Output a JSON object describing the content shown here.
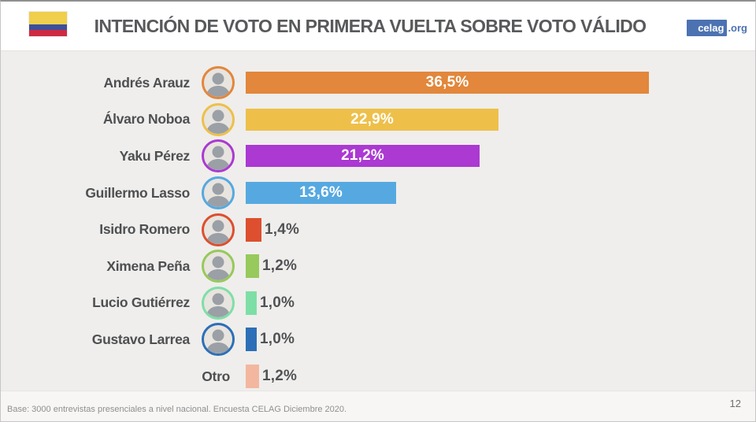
{
  "header": {
    "title": "INTENCIÓN DE VOTO EN PRIMERA VUELTA SOBRE VOTO VÁLIDO",
    "flag": {
      "name": "ecuador-flag",
      "colors": {
        "yellow": "#efcf4b",
        "blue": "#3c4f9c",
        "red": "#ce2b43"
      }
    },
    "logo": {
      "brand": "celag",
      "domain": ".org",
      "brand_bg": "#4c72b2",
      "domain_color": "#4c72b2"
    }
  },
  "chart_data": {
    "type": "bar",
    "orientation": "horizontal",
    "title": "INTENCIÓN DE VOTO EN PRIMERA VUELTA SOBRE VOTO VÁLIDO",
    "categories": [
      "Andrés Arauz",
      "Álvaro Noboa",
      "Yaku Pérez",
      "Guillermo Lasso",
      "Isidro Romero",
      "Ximena Peña",
      "Lucio Gutiérrez",
      "Gustavo Larrea",
      "Otro"
    ],
    "values": [
      36.5,
      22.9,
      21.2,
      13.6,
      1.4,
      1.2,
      1.0,
      1.0,
      1.2
    ],
    "value_labels": [
      "36,5%",
      "22,9%",
      "21,2%",
      "13,6%",
      "1,4%",
      "1,2%",
      "1,0%",
      "1,0%",
      "1,2%"
    ],
    "bar_colors": [
      "#e2873b",
      "#eec04a",
      "#ab39d2",
      "#56a9e0",
      "#dd4f2e",
      "#97c95c",
      "#7edfa6",
      "#2c6fb7",
      "#f3b7a0"
    ],
    "has_avatar": [
      true,
      true,
      true,
      true,
      true,
      true,
      true,
      true,
      false
    ],
    "xlim": [
      0,
      46.3
    ],
    "grid": false,
    "legend": false,
    "label_placement_rule": "inside bar if value large, outside right if small"
  },
  "footer": {
    "note": "Base: 3000 entrevistas presenciales a nivel nacional. Encuesta CELAG Diciembre 2020.",
    "page_number": "12"
  }
}
